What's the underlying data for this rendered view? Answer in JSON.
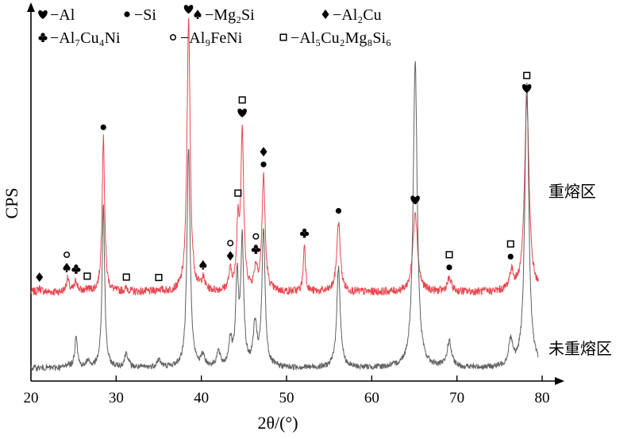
{
  "chart_data": {
    "type": "line",
    "xlabel": "2θ/(°)",
    "ylabel": "CPS",
    "xlim": [
      20,
      80
    ],
    "x_ticks": [
      20,
      30,
      40,
      50,
      60,
      70,
      80
    ],
    "y_ticks_labeled": false,
    "grid": false,
    "legend": {
      "placement": "top",
      "entries": [
        {
          "symbol": "heart",
          "name": "−Al"
        },
        {
          "symbol": "dot",
          "name": "−Si"
        },
        {
          "symbol": "spade",
          "name": "−Mg₂Si"
        },
        {
          "symbol": "diamond",
          "name": "−Al₂Cu"
        },
        {
          "symbol": "club",
          "name": "−Al₇Cu₄Ni"
        },
        {
          "symbol": "circle",
          "name": "−Al₉FeNi"
        },
        {
          "symbol": "square",
          "name": "−Al₅Cu₂Mg₈Si₆"
        }
      ]
    },
    "series": [
      {
        "name": "重熔区",
        "color": "#e8464f",
        "baseline": 0.24,
        "noise": 0.011,
        "peaks": [
          {
            "x": 21.0,
            "h": 0.01,
            "w": 0.25
          },
          {
            "x": 24.3,
            "h": 0.035,
            "w": 0.2
          },
          {
            "x": 25.3,
            "h": 0.03,
            "w": 0.2
          },
          {
            "x": 26.7,
            "h": 0.008,
            "w": 0.2
          },
          {
            "x": 28.5,
            "h": 0.42,
            "w": 0.18
          },
          {
            "x": 31.2,
            "h": 0.008,
            "w": 0.3
          },
          {
            "x": 35.0,
            "h": 0.006,
            "w": 0.3
          },
          {
            "x": 38.5,
            "h": 0.74,
            "w": 0.22
          },
          {
            "x": 40.2,
            "h": 0.03,
            "w": 0.25
          },
          {
            "x": 43.4,
            "h": 0.05,
            "w": 0.22
          },
          {
            "x": 44.3,
            "h": 0.17,
            "w": 0.18
          },
          {
            "x": 44.8,
            "h": 0.43,
            "w": 0.2
          },
          {
            "x": 46.4,
            "h": 0.06,
            "w": 0.22
          },
          {
            "x": 47.3,
            "h": 0.31,
            "w": 0.22
          },
          {
            "x": 52.1,
            "h": 0.13,
            "w": 0.15
          },
          {
            "x": 56.1,
            "h": 0.19,
            "w": 0.25
          },
          {
            "x": 65.1,
            "h": 0.22,
            "w": 0.32
          },
          {
            "x": 69.1,
            "h": 0.035,
            "w": 0.3
          },
          {
            "x": 76.4,
            "h": 0.05,
            "w": 0.3
          },
          {
            "x": 78.2,
            "h": 0.52,
            "w": 0.32
          }
        ]
      },
      {
        "name": "未重熔区",
        "color": "#5e615e",
        "baseline": 0.035,
        "noise": 0.008,
        "peaks": [
          {
            "x": 24.3,
            "h": 0.01,
            "w": 0.2
          },
          {
            "x": 25.3,
            "h": 0.09,
            "w": 0.18
          },
          {
            "x": 26.7,
            "h": 0.02,
            "w": 0.2
          },
          {
            "x": 28.5,
            "h": 0.44,
            "w": 0.18
          },
          {
            "x": 31.2,
            "h": 0.04,
            "w": 0.25
          },
          {
            "x": 35.0,
            "h": 0.02,
            "w": 0.3
          },
          {
            "x": 38.5,
            "h": 0.6,
            "w": 0.22
          },
          {
            "x": 40.2,
            "h": 0.03,
            "w": 0.25
          },
          {
            "x": 42.0,
            "h": 0.04,
            "w": 0.25
          },
          {
            "x": 43.4,
            "h": 0.07,
            "w": 0.22
          },
          {
            "x": 44.2,
            "h": 0.24,
            "w": 0.2
          },
          {
            "x": 44.8,
            "h": 0.34,
            "w": 0.2
          },
          {
            "x": 46.3,
            "h": 0.11,
            "w": 0.25
          },
          {
            "x": 47.3,
            "h": 0.37,
            "w": 0.22
          },
          {
            "x": 56.1,
            "h": 0.27,
            "w": 0.25
          },
          {
            "x": 65.1,
            "h": 0.83,
            "w": 0.28
          },
          {
            "x": 69.1,
            "h": 0.07,
            "w": 0.3
          },
          {
            "x": 76.3,
            "h": 0.07,
            "w": 0.28
          },
          {
            "x": 78.2,
            "h": 0.77,
            "w": 0.28
          }
        ]
      }
    ],
    "markers": [
      {
        "x": 21.0,
        "symbol": "diamond",
        "stack": 0
      },
      {
        "x": 24.2,
        "symbol": "spade",
        "stack": 0
      },
      {
        "x": 24.2,
        "symbol": "circle",
        "stack": 1
      },
      {
        "x": 25.3,
        "symbol": "club",
        "stack": 0
      },
      {
        "x": 26.6,
        "symbol": "square",
        "stack": 0
      },
      {
        "x": 28.5,
        "symbol": "dot",
        "stack": 0
      },
      {
        "x": 31.2,
        "symbol": "square",
        "stack": 0
      },
      {
        "x": 35.0,
        "symbol": "square",
        "stack": 0
      },
      {
        "x": 38.5,
        "symbol": "heart",
        "stack": 0
      },
      {
        "x": 40.2,
        "symbol": "spade",
        "stack": 0
      },
      {
        "x": 43.4,
        "symbol": "diamond",
        "stack": 0
      },
      {
        "x": 43.4,
        "symbol": "circle",
        "stack": 1
      },
      {
        "x": 44.3,
        "symbol": "square",
        "stack": 0
      },
      {
        "x": 44.8,
        "symbol": "heart",
        "stack": 0
      },
      {
        "x": 44.8,
        "symbol": "square",
        "stack": 1
      },
      {
        "x": 46.4,
        "symbol": "club",
        "stack": 0
      },
      {
        "x": 46.4,
        "symbol": "circle",
        "stack": 1
      },
      {
        "x": 47.3,
        "symbol": "dot",
        "stack": 0
      },
      {
        "x": 47.3,
        "symbol": "diamond",
        "stack": 1
      },
      {
        "x": 52.1,
        "symbol": "club",
        "stack": 0
      },
      {
        "x": 56.1,
        "symbol": "dot",
        "stack": 0
      },
      {
        "x": 65.1,
        "symbol": "heart",
        "stack": 0
      },
      {
        "x": 69.1,
        "symbol": "dot",
        "stack": 0
      },
      {
        "x": 69.1,
        "symbol": "square",
        "stack": 1
      },
      {
        "x": 76.3,
        "symbol": "dot",
        "stack": 0
      },
      {
        "x": 76.3,
        "symbol": "square",
        "stack": 1
      },
      {
        "x": 78.2,
        "symbol": "heart",
        "stack": 0
      },
      {
        "x": 78.2,
        "symbol": "square",
        "stack": 1
      }
    ]
  }
}
